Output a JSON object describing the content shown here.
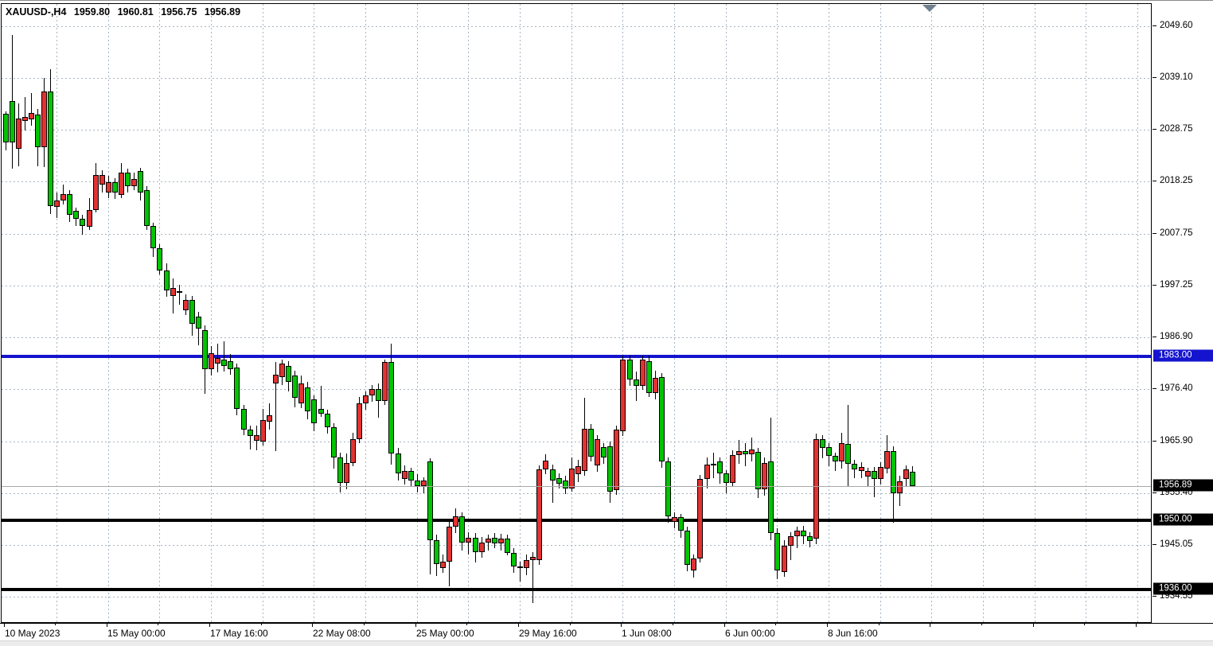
{
  "window": {
    "symbol_period": "XAUUSD-,H4",
    "ohlc_display": {
      "open": "1959.80",
      "high": "1960.81",
      "low": "1956.75",
      "close": "1956.89"
    }
  },
  "colors": {
    "background": "#ffffff",
    "grid": "#a6b4c3",
    "up_candle": "#e23232",
    "down_candle": "#00c400",
    "candle_border": "#000000",
    "wick": "#000000",
    "resistance_line": "#1414ce",
    "support_line": "#000000",
    "current_price_line": "#a8a8a8",
    "current_price_box": "#000000",
    "shift_marker": "#70808f"
  },
  "chart_data": {
    "type": "candlestick",
    "title": "XAUUSD-,H4 1959.80 1960.81 1956.75 1956.89",
    "symbol": "XAUUSD-",
    "timeframe": "H4",
    "x_axis_labels": [
      "10 May 2023",
      "15 May 00:00",
      "17 May 16:00",
      "22 May 08:00",
      "25 May 00:00",
      "29 May 16:00",
      "1 Jun 08:00",
      "6 Jun 00:00",
      "8 Jun 16:00"
    ],
    "y_axis_ticks": [
      2049.6,
      2039.1,
      2028.75,
      2018.25,
      2007.75,
      1997.25,
      1986.9,
      1976.4,
      1965.9,
      1955.4,
      1945.05,
      1934.55
    ],
    "ylim": [
      1929.1,
      2053.9
    ],
    "grid": "dashed",
    "legend": "none",
    "horizontal_lines": [
      {
        "price": 1983.0,
        "label": "1983.00",
        "color": "#1414ce",
        "width": 4
      },
      {
        "price": 1950.0,
        "label": "1950.00",
        "color": "#000000",
        "width": 4
      },
      {
        "price": 1936.0,
        "label": "1936.00",
        "color": "#000000",
        "width": 4
      }
    ],
    "current_price": {
      "price": 1956.89,
      "label": "1956.89"
    },
    "candles_format": [
      "open",
      "high",
      "low",
      "close"
    ],
    "candles": [
      [
        2032.0,
        2032.5,
        2024.5,
        2026.2
      ],
      [
        2034.5,
        2047.9,
        2020.9,
        2026.2
      ],
      [
        2024.9,
        2034.0,
        2021.4,
        2031.0
      ],
      [
        2030.5,
        2035.3,
        2028.6,
        2031.3
      ],
      [
        2030.8,
        2036.1,
        2029.5,
        2032.1
      ],
      [
        2031.8,
        2032.9,
        2021.4,
        2025.2
      ],
      [
        2025.2,
        2039.1,
        2021.2,
        2036.4
      ],
      [
        2036.4,
        2040.9,
        2011.7,
        2013.3
      ],
      [
        2013.2,
        2016.0,
        2011.0,
        2014.5
      ],
      [
        2014.5,
        2017.7,
        2013.7,
        2015.8
      ],
      [
        2015.8,
        2016.5,
        2010.1,
        2011.6
      ],
      [
        2012.4,
        2013.0,
        2009.3,
        2010.8
      ],
      [
        2010.8,
        2011.5,
        2007.5,
        2009.3
      ],
      [
        2009.2,
        2015.0,
        2008.5,
        2012.5
      ],
      [
        2012.5,
        2022.0,
        2012.0,
        2019.6
      ],
      [
        2017.7,
        2020.5,
        2016.1,
        2019.6
      ],
      [
        2016.1,
        2019.5,
        2015.0,
        2018.2
      ],
      [
        2018.2,
        2019.0,
        2014.8,
        2016.1
      ],
      [
        2015.6,
        2022.0,
        2015.0,
        2020.1
      ],
      [
        2020.1,
        2020.8,
        2016.1,
        2017.4
      ],
      [
        2017.4,
        2020.0,
        2016.5,
        2018.8
      ],
      [
        2020.4,
        2021.0,
        2014.5,
        2016.1
      ],
      [
        2016.5,
        2017.3,
        2008.5,
        2009.3
      ],
      [
        2009.3,
        2010.0,
        2003.0,
        2004.8
      ],
      [
        2004.8,
        2005.6,
        1999.5,
        2000.3
      ],
      [
        2000.3,
        2001.8,
        1995.0,
        1996.3
      ],
      [
        1995.2,
        1998.7,
        1991.7,
        1996.8
      ],
      [
        1995.8,
        1997.5,
        1993.5,
        1996.2
      ],
      [
        1992.3,
        1995.6,
        1991.3,
        1994.4
      ],
      [
        1994.4,
        1995.2,
        1987.2,
        1989.6
      ],
      [
        1991.0,
        1992.0,
        1985.3,
        1988.6
      ],
      [
        1988.3,
        1989.2,
        1975.5,
        1980.5
      ],
      [
        1980.5,
        1985.1,
        1979.2,
        1983.7
      ],
      [
        1981.6,
        1985.6,
        1979.8,
        1982.7
      ],
      [
        1982.4,
        1986.1,
        1980.0,
        1981.1
      ],
      [
        1982.1,
        1983.5,
        1979.3,
        1980.5
      ],
      [
        1980.8,
        1981.6,
        1971.1,
        1972.4
      ],
      [
        1972.4,
        1973.2,
        1967.1,
        1968.3
      ],
      [
        1968.3,
        1969.1,
        1964.2,
        1967.0
      ],
      [
        1966.0,
        1969.0,
        1964.0,
        1967.1
      ],
      [
        1965.9,
        1972.4,
        1965.0,
        1970.2
      ],
      [
        1969.8,
        1973.5,
        1968.3,
        1971.1
      ],
      [
        1977.5,
        1981.9,
        1963.9,
        1979.3
      ],
      [
        1978.9,
        1982.4,
        1977.2,
        1981.6
      ],
      [
        1981.1,
        1982.0,
        1976.0,
        1977.9
      ],
      [
        1979.2,
        1980.1,
        1972.7,
        1974.7
      ],
      [
        1973.5,
        1979.2,
        1972.6,
        1977.6
      ],
      [
        1976.8,
        1977.8,
        1970.3,
        1972.0
      ],
      [
        1974.3,
        1975.2,
        1967.9,
        1969.5
      ],
      [
        1972.4,
        1977.0,
        1970.8,
        1971.4
      ],
      [
        1971.4,
        1972.3,
        1967.5,
        1968.7
      ],
      [
        1968.7,
        1969.5,
        1960.4,
        1962.6
      ],
      [
        1962.6,
        1963.6,
        1955.6,
        1957.5
      ],
      [
        1957.5,
        1963.4,
        1956.2,
        1961.5
      ],
      [
        1961.5,
        1967.6,
        1960.8,
        1966.3
      ],
      [
        1966.3,
        1974.9,
        1965.5,
        1973.5
      ],
      [
        1973.5,
        1976.0,
        1972.3,
        1975.1
      ],
      [
        1975.1,
        1977.3,
        1973.8,
        1976.5
      ],
      [
        1976.5,
        1977.5,
        1970.6,
        1974.1
      ],
      [
        1974.1,
        1982.4,
        1973.2,
        1981.9
      ],
      [
        1981.9,
        1985.6,
        1961.2,
        1963.4
      ],
      [
        1963.4,
        1964.5,
        1958.0,
        1959.4
      ],
      [
        1958.3,
        1961.0,
        1957.2,
        1959.9
      ],
      [
        1959.9,
        1960.6,
        1956.7,
        1958.0
      ],
      [
        1958.0,
        1959.2,
        1955.6,
        1956.8
      ],
      [
        1956.8,
        1958.6,
        1955.4,
        1958.0
      ],
      [
        1961.9,
        1962.5,
        1939.0,
        1945.9
      ],
      [
        1945.9,
        1947.1,
        1938.8,
        1941.1
      ],
      [
        1940.3,
        1943.1,
        1939.4,
        1941.6
      ],
      [
        1941.6,
        1949.6,
        1936.6,
        1948.6
      ],
      [
        1948.6,
        1952.3,
        1947.4,
        1950.8
      ],
      [
        1950.8,
        1951.6,
        1943.9,
        1945.5
      ],
      [
        1945.5,
        1947.6,
        1943.1,
        1946.5
      ],
      [
        1946.5,
        1947.4,
        1941.4,
        1943.5
      ],
      [
        1943.5,
        1946.6,
        1942.4,
        1945.5
      ],
      [
        1945.5,
        1947.1,
        1943.9,
        1946.2
      ],
      [
        1946.4,
        1947.4,
        1944.4,
        1945.3
      ],
      [
        1945.3,
        1947.3,
        1943.9,
        1946.3
      ],
      [
        1946.3,
        1947.1,
        1942.9,
        1943.4
      ],
      [
        1943.4,
        1944.3,
        1939.4,
        1940.6
      ],
      [
        1940.6,
        1941.6,
        1937.6,
        1940.3
      ],
      [
        1940.3,
        1943.1,
        1938.9,
        1941.9
      ],
      [
        1941.9,
        1943.6,
        1933.2,
        1942.5
      ],
      [
        1941.9,
        1961.1,
        1940.9,
        1960.2
      ],
      [
        1960.2,
        1963.2,
        1959.3,
        1962.0
      ],
      [
        1960.3,
        1961.2,
        1953.5,
        1958.0
      ],
      [
        1958.5,
        1959.4,
        1956.4,
        1957.4
      ],
      [
        1958.0,
        1958.9,
        1955.3,
        1956.4
      ],
      [
        1956.4,
        1962.6,
        1955.7,
        1960.4
      ],
      [
        1959.2,
        1962.1,
        1957.6,
        1960.8
      ],
      [
        1959.9,
        1974.6,
        1959.0,
        1968.4
      ],
      [
        1968.4,
        1969.3,
        1961.9,
        1962.8
      ],
      [
        1961.0,
        1967.1,
        1959.8,
        1966.3
      ],
      [
        1964.7,
        1965.6,
        1961.4,
        1962.6
      ],
      [
        1964.9,
        1965.8,
        1953.5,
        1955.8
      ],
      [
        1956.0,
        1969.1,
        1955.1,
        1968.2
      ],
      [
        1967.9,
        1983.2,
        1967.0,
        1982.3
      ],
      [
        1982.3,
        1983.2,
        1977.0,
        1978.3
      ],
      [
        1978.3,
        1980.0,
        1974.0,
        1977.0
      ],
      [
        1977.0,
        1983.1,
        1976.2,
        1982.4
      ],
      [
        1982.1,
        1983.1,
        1974.9,
        1975.7
      ],
      [
        1975.7,
        1980.1,
        1974.4,
        1978.7
      ],
      [
        1978.9,
        1979.6,
        1960.6,
        1961.8
      ],
      [
        1961.9,
        1962.6,
        1949.4,
        1950.7
      ],
      [
        1949.7,
        1951.6,
        1948.4,
        1950.6
      ],
      [
        1950.6,
        1951.3,
        1946.4,
        1947.9
      ],
      [
        1947.9,
        1948.6,
        1939.7,
        1941.0
      ],
      [
        1939.8,
        1943.1,
        1938.4,
        1942.2
      ],
      [
        1942.2,
        1959.1,
        1941.4,
        1958.3
      ],
      [
        1958.3,
        1962.6,
        1956.4,
        1961.2
      ],
      [
        1961.4,
        1963.6,
        1958.4,
        1961.0
      ],
      [
        1961.8,
        1962.6,
        1957.4,
        1959.4
      ],
      [
        1959.4,
        1960.1,
        1955.4,
        1957.5
      ],
      [
        1957.5,
        1964.1,
        1956.7,
        1963.1
      ],
      [
        1963.1,
        1966.1,
        1961.4,
        1963.9
      ],
      [
        1963.9,
        1965.6,
        1960.9,
        1963.2
      ],
      [
        1963.2,
        1966.6,
        1961.9,
        1964.2
      ],
      [
        1963.7,
        1964.6,
        1954.4,
        1956.2
      ],
      [
        1956.2,
        1962.6,
        1954.9,
        1961.5
      ],
      [
        1961.8,
        1970.7,
        1945.9,
        1947.4
      ],
      [
        1947.4,
        1948.3,
        1938.1,
        1939.9
      ],
      [
        1939.6,
        1945.9,
        1938.5,
        1944.8
      ],
      [
        1944.8,
        1947.6,
        1941.9,
        1946.8
      ],
      [
        1946.8,
        1948.7,
        1944.4,
        1947.9
      ],
      [
        1947.9,
        1948.9,
        1945.1,
        1946.7
      ],
      [
        1946.7,
        1947.6,
        1944.5,
        1945.8
      ],
      [
        1946.2,
        1967.4,
        1945.2,
        1966.4
      ],
      [
        1966.4,
        1967.1,
        1962.4,
        1964.6
      ],
      [
        1964.7,
        1965.6,
        1960.9,
        1962.9
      ],
      [
        1962.9,
        1963.6,
        1959.9,
        1961.8
      ],
      [
        1961.8,
        1967.6,
        1960.4,
        1965.6
      ],
      [
        1965.3,
        1973.2,
        1956.7,
        1961.3
      ],
      [
        1961.3,
        1962.1,
        1958.4,
        1960.2
      ],
      [
        1959.9,
        1961.6,
        1958.4,
        1960.7
      ],
      [
        1958.8,
        1960.6,
        1956.9,
        1959.9
      ],
      [
        1959.9,
        1960.7,
        1954.6,
        1958.3
      ],
      [
        1958.3,
        1961.6,
        1957.1,
        1960.7
      ],
      [
        1960.4,
        1967.2,
        1959.4,
        1963.9
      ],
      [
        1963.9,
        1964.9,
        1949.4,
        1955.4
      ],
      [
        1955.4,
        1958.9,
        1952.9,
        1957.9
      ],
      [
        1958.3,
        1961.1,
        1956.7,
        1960.2
      ],
      [
        1959.8,
        1960.81,
        1956.75,
        1956.89
      ]
    ]
  }
}
